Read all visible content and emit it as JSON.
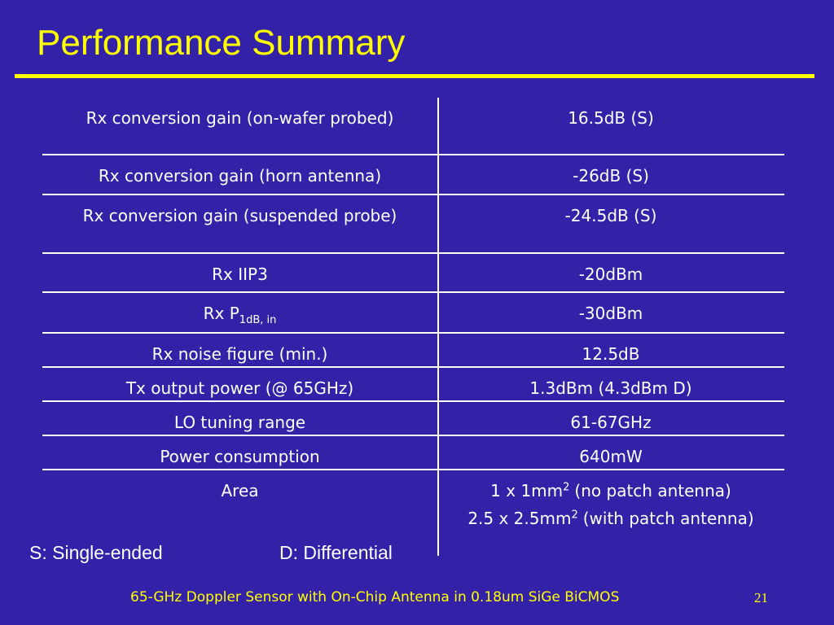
{
  "title": "Performance Summary",
  "table": {
    "rows": [
      {
        "label": "Rx conversion gain (on-wafer probed)",
        "value": "16.5dB (S)"
      },
      {
        "label": "Rx conversion gain (horn antenna)",
        "value": "-26dB (S)"
      },
      {
        "label": "Rx conversion gain (suspended probe)",
        "value": "-24.5dB (S)"
      },
      {
        "label": "Rx IIP3",
        "value": "-20dBm"
      },
      {
        "label": "Rx P",
        "label_sub": "1dB, in",
        "value": "-30dBm"
      },
      {
        "label": "Rx noise figure (min.)",
        "value": "12.5dB"
      },
      {
        "label": "Tx output power (@ 65GHz)",
        "value": "1.3dBm (4.3dBm D)"
      },
      {
        "label": "LO tuning range",
        "value": "61-67GHz"
      },
      {
        "label": "Power consumption",
        "value": "640mW"
      },
      {
        "label": "Area",
        "value_lines": [
          {
            "text": "1 x 1mm",
            "sup": "2",
            "after": "(no patch antenna)"
          },
          {
            "text": "2.5 x 2.5mm",
            "sup": "2",
            "after": "(with patch antenna)"
          }
        ]
      }
    ]
  },
  "notes": [
    "S:  Single-ended",
    "D:  Differential"
  ],
  "footer": {
    "text": "65-GHz Doppler Sensor with On-Chip Antenna in 0.18um SiGe BiCMOS",
    "page": "21"
  }
}
